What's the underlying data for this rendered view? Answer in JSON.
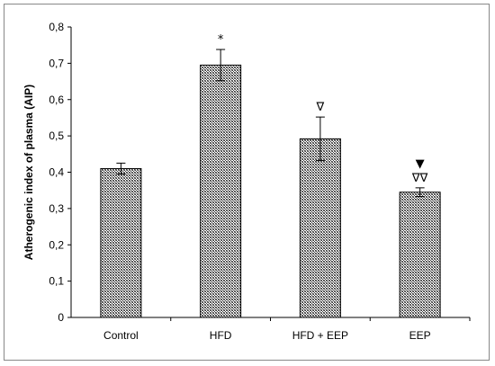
{
  "chart_data": {
    "type": "bar",
    "title": "",
    "xlabel": "",
    "ylabel": "Atherogenic index of plasma (AIP)",
    "ylim": [
      0,
      0.8
    ],
    "yticks": [
      "0",
      "0,1",
      "0,2",
      "0,3",
      "0,4",
      "0,5",
      "0,6",
      "0,7",
      "0,8"
    ],
    "categories": [
      "Control",
      "HFD",
      "HFD + EEP",
      "EEP"
    ],
    "values": [
      0.41,
      0.695,
      0.492,
      0.345
    ],
    "errors": [
      0.015,
      0.043,
      0.06,
      0.012
    ],
    "annotations": [
      "",
      "*",
      "∇",
      "▼\n∇∇"
    ],
    "grid": false,
    "bar_fill": "crosshatch",
    "bar_color": "#555555"
  }
}
